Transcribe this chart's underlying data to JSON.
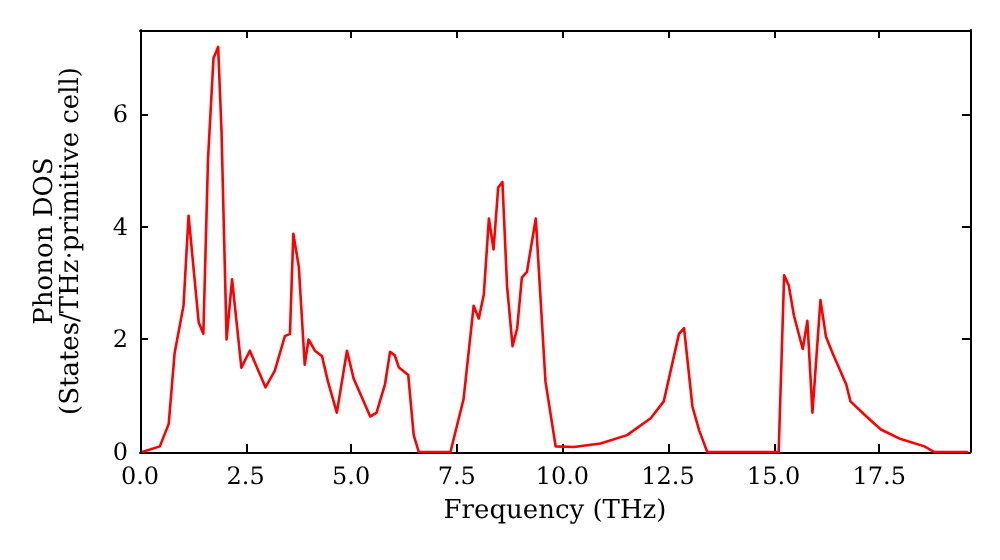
{
  "chart_data": {
    "type": "line",
    "xlabel": "Frequency (THz)",
    "ylabel": "Phonon DOS\n(States/THz·primitive cell)",
    "xlim": [
      0,
      19.65
    ],
    "ylim": [
      0,
      7.5
    ],
    "xticks": [
      {
        "value": 0,
        "label": "0.0"
      },
      {
        "value": 2.5,
        "label": "2.5"
      },
      {
        "value": 5,
        "label": "5.0"
      },
      {
        "value": 7.5,
        "label": "7.5"
      },
      {
        "value": 10,
        "label": "10.0"
      },
      {
        "value": 12.5,
        "label": "12.5"
      },
      {
        "value": 15,
        "label": "15.0"
      },
      {
        "value": 17.5,
        "label": "17.5"
      }
    ],
    "yticks": [
      0,
      2,
      4,
      6
    ],
    "grid": false,
    "marker": "none",
    "line_style": "solid",
    "series": [
      {
        "color": "#ff0000",
        "x": [
          0.05,
          0.47,
          0.68,
          0.82,
          1.03,
          1.15,
          1.39,
          1.5,
          1.61,
          1.74,
          1.85,
          1.93,
          2.05,
          2.18,
          2.4,
          2.6,
          2.97,
          3.19,
          3.43,
          3.55,
          3.63,
          3.76,
          3.9,
          3.99,
          4.14,
          4.31,
          4.45,
          4.66,
          4.9,
          5.06,
          5.45,
          5.6,
          5.8,
          5.92,
          6.03,
          6.13,
          6.35,
          6.48,
          6.6,
          7.35,
          7.66,
          7.9,
          8.02,
          8.14,
          8.26,
          8.37,
          8.48,
          8.58,
          8.69,
          8.82,
          8.93,
          9.04,
          9.16,
          9.37,
          9.6,
          9.84,
          10.27,
          10.9,
          11.53,
          12.09,
          12.4,
          12.76,
          12.88,
          13.08,
          13.24,
          13.43,
          15.12,
          15.25,
          15.36,
          15.48,
          15.69,
          15.8,
          15.92,
          16.11,
          16.24,
          16.4,
          16.72,
          16.82,
          17.14,
          17.54,
          18.01,
          18.57,
          18.8,
          19.6
        ],
        "values": [
          0,
          0.1,
          0.5,
          1.76,
          2.6,
          4.2,
          2.3,
          2.1,
          5.2,
          7.0,
          7.2,
          5.7,
          2.0,
          3.07,
          1.5,
          1.8,
          1.15,
          1.44,
          2.06,
          2.1,
          3.88,
          3.29,
          1.55,
          2.0,
          1.8,
          1.7,
          1.25,
          0.7,
          1.8,
          1.3,
          0.63,
          0.7,
          1.2,
          1.78,
          1.72,
          1.5,
          1.37,
          0.3,
          0,
          0,
          0.94,
          2.6,
          2.37,
          2.8,
          4.15,
          3.6,
          4.7,
          4.8,
          2.95,
          1.88,
          2.2,
          3.1,
          3.2,
          4.15,
          1.25,
          0.1,
          0.09,
          0.15,
          0.3,
          0.6,
          0.9,
          2.1,
          2.2,
          0.8,
          0.38,
          0,
          0,
          3.14,
          2.96,
          2.43,
          1.83,
          2.33,
          0.7,
          2.7,
          2.05,
          1.75,
          1.2,
          0.9,
          0.67,
          0.4,
          0.23,
          0.1,
          0,
          0
        ]
      }
    ]
  }
}
